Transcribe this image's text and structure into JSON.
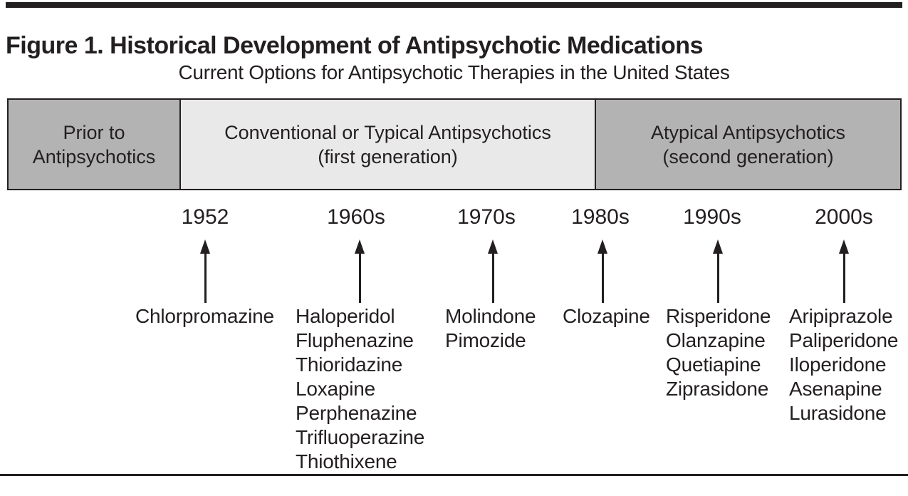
{
  "figure": {
    "title": "Figure 1. Historical Development of Antipsychotic Medications",
    "subtitle": "Current Options for Antipsychotic Therapies in the United States"
  },
  "era_bar": {
    "sections": [
      {
        "line1": "Prior to",
        "line2": "Antipsychotics",
        "tone": "dark"
      },
      {
        "line1": "Conventional or Typical Antipsychotics",
        "line2": "(first generation)",
        "tone": "light"
      },
      {
        "line1": "Atypical Antipsychotics",
        "line2": "(second generation)",
        "tone": "dark"
      }
    ]
  },
  "timeline": {
    "columns": [
      {
        "decade": "1952",
        "drugs": [
          "Chlorpromazine"
        ]
      },
      {
        "decade": "1960s",
        "drugs": [
          "Haloperidol",
          "Fluphenazine",
          "Thioridazine",
          "Loxapine",
          "Perphenazine",
          "Trifluoperazine",
          "Thiothixene"
        ]
      },
      {
        "decade": "1970s",
        "drugs": [
          "Molindone",
          "Pimozide"
        ]
      },
      {
        "decade": "1980s",
        "drugs": [
          "Clozapine"
        ]
      },
      {
        "decade": "1990s",
        "drugs": [
          "Risperidone",
          "Olanzapine",
          "Quetiapine",
          "Ziprasidone"
        ]
      },
      {
        "decade": "2000s",
        "drugs": [
          "Aripiprazole",
          "Paliperidone",
          "Iloperidone",
          "Asenapine",
          "Lurasidone"
        ]
      }
    ]
  },
  "colors": {
    "ink": "#231f20",
    "gray_dark": "#b3b3b3",
    "gray_light": "#e9e9e9",
    "background": "#ffffff"
  }
}
